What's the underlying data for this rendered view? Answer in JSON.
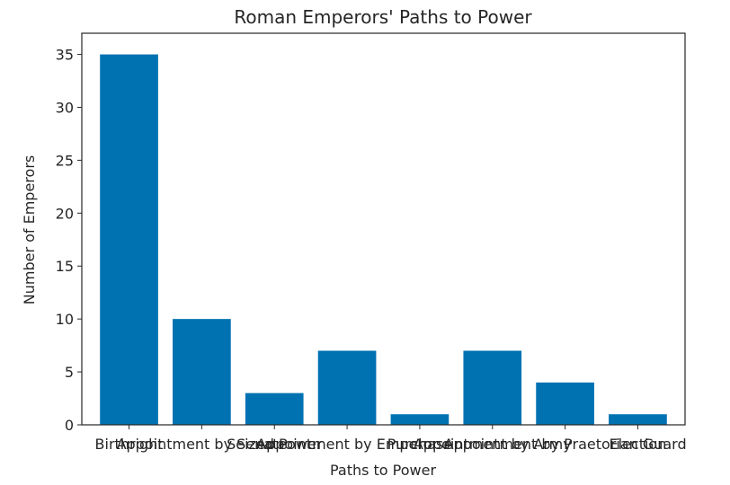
{
  "chart_data": {
    "type": "bar",
    "title": "Roman Emperors' Paths to Power",
    "xlabel": "Paths to Power",
    "ylabel": "Number of Emperors",
    "categories": [
      "Birthright",
      "Appointment by Senate",
      "Seized Power",
      "Appointment by Emperor",
      "Purchase",
      "Appointment by Army",
      "Appointment by Praetorian Guard",
      "Election"
    ],
    "values": [
      35,
      10,
      3,
      7,
      1,
      7,
      4,
      1
    ],
    "ylim": [
      0,
      37
    ],
    "yticks": [
      0,
      5,
      10,
      15,
      20,
      25,
      30,
      35
    ],
    "grid": false,
    "bar_color": "#0072b2"
  }
}
